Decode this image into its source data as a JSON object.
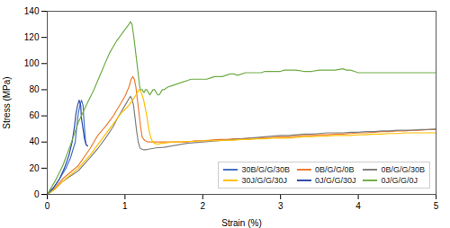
{
  "chart_data": {
    "type": "line",
    "xlabel": "Strain (%)",
    "ylabel": "Stress (MPa)",
    "xlim": [
      0,
      5
    ],
    "ylim": [
      0,
      140
    ],
    "xticks": [
      0,
      1,
      2,
      3,
      4,
      5
    ],
    "yticks": [
      0,
      20,
      40,
      60,
      80,
      100,
      120,
      140
    ],
    "grid": false,
    "legend": "lower right",
    "series": [
      {
        "name": "30B/G/G/30B",
        "color": "#4472C4",
        "x": [
          0,
          0.08,
          0.16,
          0.24,
          0.3,
          0.36,
          0.38,
          0.4,
          0.42,
          0.44,
          0.46,
          0.47,
          0.48,
          0.49,
          0.5,
          0.52
        ],
        "values": [
          0,
          5,
          12,
          20,
          28,
          40,
          52,
          62,
          68,
          72,
          68,
          58,
          50,
          42,
          38,
          37
        ]
      },
      {
        "name": "0B/G/G/0B",
        "color": "#ED7D31",
        "x": [
          0,
          0.1,
          0.2,
          0.4,
          0.55,
          0.65,
          0.75,
          0.85,
          0.9,
          0.95,
          1.0,
          1.05,
          1.08,
          1.1,
          1.12,
          1.14,
          1.16,
          1.18,
          1.2,
          1.22,
          1.24,
          1.26,
          1.28,
          1.3,
          1.35,
          1.4,
          1.5,
          1.6,
          1.7,
          1.8,
          1.85,
          1.9,
          2.0,
          2.1,
          2.2,
          2.3,
          2.4,
          2.5,
          2.6,
          2.7,
          2.8,
          2.9,
          3.0,
          3.1,
          3.2,
          3.3,
          3.4,
          3.5,
          3.6,
          3.7,
          3.8,
          3.9,
          4.0,
          4.1,
          4.2,
          4.3,
          4.4,
          4.5,
          4.6,
          4.7,
          4.8,
          4.9,
          5.0
        ],
        "values": [
          0,
          5,
          12,
          22,
          35,
          45,
          52,
          60,
          65,
          70,
          75,
          82,
          88,
          90,
          88,
          82,
          72,
          62,
          52,
          44,
          42,
          41,
          40.5,
          40,
          40,
          40,
          40,
          40,
          40,
          40,
          40.5,
          41,
          41,
          41.5,
          42,
          42,
          42.5,
          42.5,
          43,
          43,
          43.5,
          43.5,
          44,
          44,
          44.5,
          45,
          45,
          45.5,
          45.5,
          46,
          46,
          46.5,
          47,
          47,
          47.5,
          48,
          48,
          48.5,
          48.5,
          49,
          49,
          49.5,
          49.5
        ]
      },
      {
        "name": "0B/G/G/30B",
        "color": "#808080",
        "x": [
          0,
          0.1,
          0.2,
          0.4,
          0.55,
          0.65,
          0.75,
          0.85,
          0.9,
          0.95,
          1.0,
          1.05,
          1.07,
          1.09,
          1.11,
          1.13,
          1.15,
          1.17,
          1.18,
          1.19,
          1.2,
          1.22,
          1.24,
          1.26,
          1.3,
          1.35,
          1.4,
          1.5,
          1.6,
          1.7,
          1.8,
          1.9,
          2.0,
          2.1,
          2.2,
          2.3,
          2.4,
          2.5,
          2.6,
          2.7,
          2.8,
          2.9,
          3.0,
          3.1,
          3.2,
          3.3,
          3.4,
          3.5,
          3.6,
          3.7,
          3.8,
          3.9,
          4.0,
          4.1,
          4.2,
          4.3,
          4.4,
          4.5,
          4.6,
          4.7,
          4.8,
          4.9,
          5.0
        ],
        "values": [
          0,
          4,
          10,
          18,
          28,
          35,
          43,
          52,
          58,
          63,
          68,
          73,
          75,
          73,
          68,
          58,
          48,
          40,
          38,
          36,
          35,
          34.5,
          34,
          34,
          34.5,
          35,
          35.5,
          36,
          37,
          38,
          39,
          39.5,
          40,
          40.5,
          41,
          41.5,
          42,
          42.5,
          43,
          43.5,
          44,
          44.5,
          45,
          45,
          45.5,
          46,
          46,
          46.5,
          47,
          47,
          47,
          47.5,
          47.5,
          48,
          48,
          48.5,
          48.5,
          49,
          49,
          49,
          49.5,
          49.5,
          50
        ]
      },
      {
        "name": "30J/G/G/30J",
        "color": "#FFC000",
        "x": [
          0,
          0.1,
          0.2,
          0.4,
          0.55,
          0.65,
          0.75,
          0.85,
          0.9,
          0.95,
          1.0,
          1.05,
          1.07,
          1.1,
          1.13,
          1.16,
          1.18,
          1.2,
          1.22,
          1.24,
          1.26,
          1.28,
          1.3,
          1.32,
          1.34,
          1.36,
          1.38,
          1.4,
          1.42,
          1.44,
          1.46,
          1.48,
          1.5,
          1.55,
          1.6,
          1.7,
          1.8,
          1.9,
          2.0,
          2.1,
          2.2,
          2.3,
          2.4,
          2.5,
          2.6,
          2.7,
          2.8,
          2.9,
          3.0,
          3.1,
          3.2,
          3.3,
          3.4,
          3.5,
          3.6,
          3.7,
          3.8,
          3.9,
          4.0,
          4.1,
          4.2,
          4.3,
          4.4,
          4.5,
          4.6,
          4.7,
          4.8,
          4.9,
          5.0
        ],
        "values": [
          0,
          4,
          10,
          20,
          30,
          38,
          46,
          54,
          58,
          62,
          65,
          68,
          70,
          72,
          75,
          78,
          80,
          79,
          76,
          72,
          66,
          60,
          52,
          46,
          42,
          40,
          39,
          38.5,
          38.5,
          38.5,
          39,
          39,
          39,
          39.5,
          40,
          40,
          40.5,
          40.5,
          41,
          41,
          41,
          41.5,
          41.5,
          42,
          42,
          42.5,
          42.5,
          43,
          43,
          43,
          43.5,
          44,
          44,
          44.5,
          44.5,
          45,
          45,
          45,
          45.5,
          45.5,
          46,
          46,
          46.5,
          46.5,
          47,
          47,
          47,
          47,
          47
        ]
      },
      {
        "name": "0J/G/G/30J",
        "color": "#2E4EAA",
        "x": [
          0,
          0.08,
          0.16,
          0.22,
          0.28,
          0.32,
          0.35,
          0.37,
          0.39,
          0.41,
          0.43,
          0.44,
          0.46,
          0.48,
          0.5,
          0.52
        ],
        "values": [
          0,
          5,
          12,
          20,
          30,
          40,
          52,
          62,
          68,
          72,
          68,
          58,
          50,
          42,
          38,
          37
        ]
      },
      {
        "name": "0J/G/G/0J",
        "color": "#70AD47",
        "x": [
          0,
          0.1,
          0.2,
          0.3,
          0.4,
          0.5,
          0.6,
          0.7,
          0.8,
          0.9,
          1.0,
          1.05,
          1.07,
          1.09,
          1.11,
          1.13,
          1.15,
          1.17,
          1.19,
          1.2,
          1.22,
          1.24,
          1.25,
          1.26,
          1.28,
          1.3,
          1.32,
          1.34,
          1.36,
          1.38,
          1.4,
          1.42,
          1.44,
          1.46,
          1.48,
          1.5,
          1.55,
          1.6,
          1.65,
          1.7,
          1.75,
          1.8,
          1.85,
          1.9,
          1.95,
          2.0,
          2.05,
          2.1,
          2.15,
          2.2,
          2.25,
          2.3,
          2.35,
          2.4,
          2.45,
          2.5,
          2.55,
          2.6,
          2.65,
          2.7,
          2.75,
          2.8,
          2.85,
          2.9,
          2.95,
          3.0,
          3.05,
          3.1,
          3.2,
          3.3,
          3.4,
          3.5,
          3.6,
          3.7,
          3.8,
          3.85,
          3.9,
          3.95,
          4.0,
          4.1,
          4.2,
          4.3,
          4.4,
          4.5,
          4.6,
          4.7,
          4.8,
          4.9,
          5.0
        ],
        "values": [
          0,
          10,
          22,
          38,
          55,
          68,
          80,
          94,
          108,
          118,
          126,
          130,
          132,
          130,
          122,
          112,
          102,
          92,
          82,
          80,
          80,
          78,
          78,
          80,
          80,
          78,
          76,
          78,
          80,
          80,
          78,
          76,
          76,
          78,
          80,
          80,
          82,
          83,
          84,
          85,
          86,
          87,
          88,
          88,
          88,
          88,
          88,
          89,
          90,
          90,
          90,
          91,
          92,
          92,
          91,
          92,
          93,
          93,
          93,
          93,
          93,
          94,
          94,
          94,
          94,
          94,
          95,
          95,
          95,
          94,
          94,
          95,
          95,
          95,
          96,
          95,
          95,
          94,
          93,
          93,
          93,
          93,
          93,
          93,
          93,
          93,
          93,
          93,
          93
        ]
      }
    ]
  }
}
